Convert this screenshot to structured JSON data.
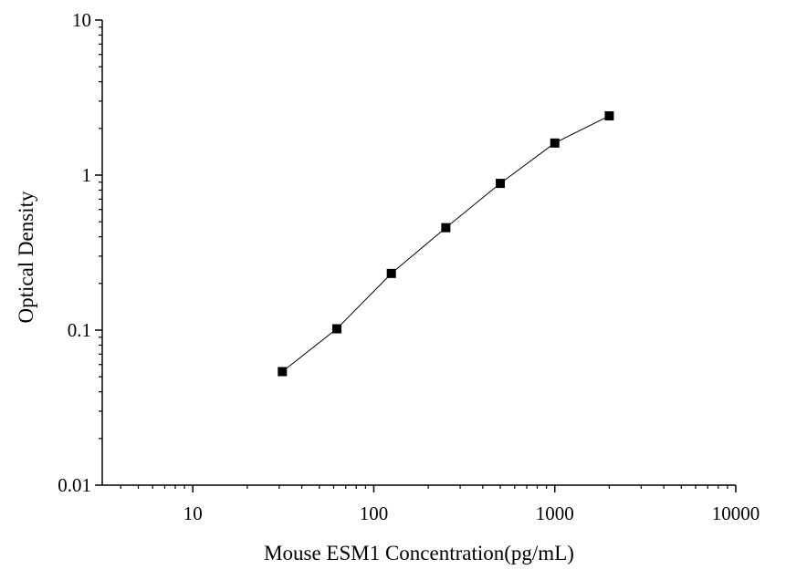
{
  "chart_data": {
    "type": "scatter",
    "title": "",
    "xlabel": "Mouse ESM1 Concentration(pg/mL)",
    "ylabel": "Optical Density",
    "xscale": "log",
    "yscale": "log",
    "xlim": [
      3.16,
      10000
    ],
    "ylim": [
      0.01,
      10
    ],
    "xticks": [
      {
        "value": 10,
        "label": "10"
      },
      {
        "value": 100,
        "label": "100"
      },
      {
        "value": 1000,
        "label": "1000"
      },
      {
        "value": 10000,
        "label": "10000"
      }
    ],
    "yticks": [
      {
        "value": 0.01,
        "label": "0.01"
      },
      {
        "value": 0.1,
        "label": "0.1"
      },
      {
        "value": 1,
        "label": "1"
      },
      {
        "value": 10,
        "label": "10"
      }
    ],
    "grid": false,
    "connected": true,
    "marker": "square",
    "color": "#000000",
    "series": [
      {
        "x": [
          31.25,
          62.5,
          125,
          250,
          500,
          1000,
          2000
        ],
        "y": [
          0.054,
          0.102,
          0.232,
          0.458,
          0.884,
          1.61,
          2.41
        ]
      }
    ]
  }
}
